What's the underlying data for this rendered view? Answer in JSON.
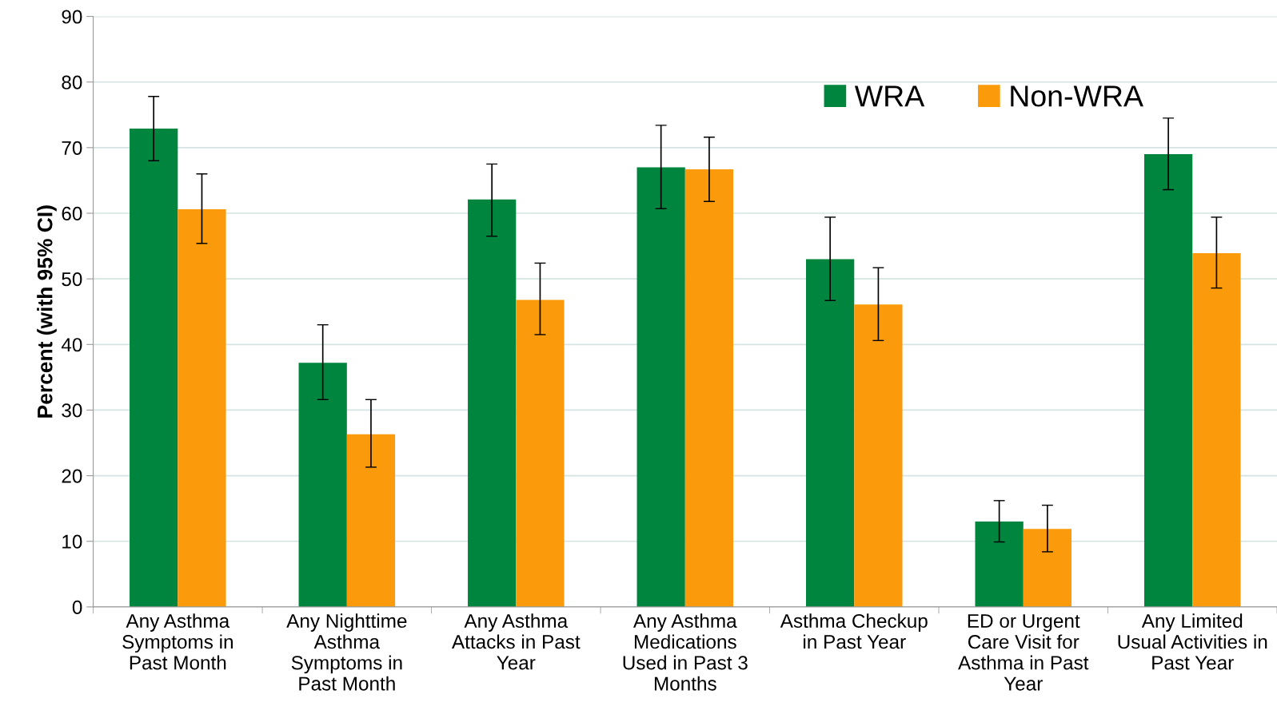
{
  "chart_data": {
    "type": "bar",
    "ylabel": "Percent (with 95% CI)",
    "categories": [
      "Any Asthma\nSymptoms in\nPast Month",
      "Any Nighttime\nAsthma\nSymptoms in\nPast Month",
      "Any Asthma\nAttacks in Past\nYear",
      "Any Asthma\nMedications\nUsed in Past 3\nMonths",
      "Asthma Checkup\nin Past Year",
      "ED or Urgent\nCare Visit for\nAsthma in Past\nYear",
      "Any Limited\nUsual Activities in\nPast Year"
    ],
    "series": [
      {
        "name": "WRA",
        "color": "#00853e",
        "values": [
          72.9,
          37.2,
          62.1,
          67.0,
          53.0,
          13.0,
          69.0
        ],
        "errors": [
          [
            68.0,
            77.8
          ],
          [
            31.6,
            43.0
          ],
          [
            56.5,
            67.5
          ],
          [
            60.7,
            73.4
          ],
          [
            46.7,
            59.4
          ],
          [
            9.9,
            16.2
          ],
          [
            63.6,
            74.5
          ]
        ]
      },
      {
        "name": "Non-WRA",
        "color": "#fb9b0b",
        "values": [
          60.6,
          26.3,
          46.8,
          66.7,
          46.1,
          11.9,
          53.9
        ],
        "errors": [
          [
            55.4,
            66.0
          ],
          [
            21.3,
            31.6
          ],
          [
            41.5,
            52.4
          ],
          [
            61.8,
            71.6
          ],
          [
            40.6,
            51.7
          ],
          [
            8.4,
            15.5
          ],
          [
            48.6,
            59.4
          ]
        ]
      }
    ],
    "ylim": [
      0,
      90
    ],
    "yticks": [
      0,
      10,
      20,
      30,
      40,
      50,
      60,
      70,
      80,
      90
    ],
    "grid": "y",
    "legend": "top right"
  }
}
